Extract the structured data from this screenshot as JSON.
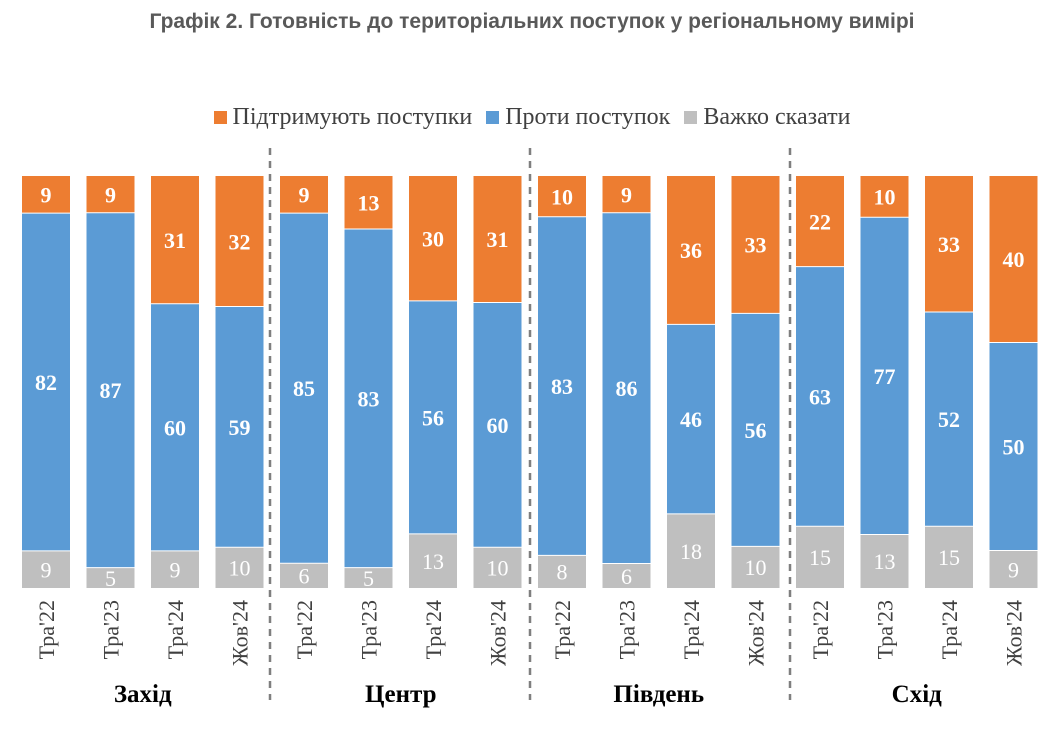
{
  "colors": {
    "support": "#ED7D31",
    "against": "#5B9BD5",
    "unsure": "#BFBFBF"
  },
  "chart_data": {
    "type": "bar",
    "stacked": true,
    "title": "Графік 2. Готовність до територіальних поступок у регіональному вимірі",
    "legend": [
      "Підтримують поступки",
      "Проти поступок",
      "Важко сказати"
    ],
    "legend_position": "top",
    "groups": [
      {
        "region": "Захід",
        "bars": [
          {
            "label": "Тра'22",
            "support": 9,
            "against": 82,
            "unsure": 9
          },
          {
            "label": "Тра'23",
            "support": 9,
            "against": 87,
            "unsure": 5
          },
          {
            "label": "Тра'24",
            "support": 31,
            "against": 60,
            "unsure": 9
          },
          {
            "label": "Жов'24",
            "support": 32,
            "against": 59,
            "unsure": 10
          }
        ]
      },
      {
        "region": "Центр",
        "bars": [
          {
            "label": "Тра'22",
            "support": 9,
            "against": 85,
            "unsure": 6
          },
          {
            "label": "Тра'23",
            "support": 13,
            "against": 83,
            "unsure": 5
          },
          {
            "label": "Тра'24",
            "support": 30,
            "against": 56,
            "unsure": 13
          },
          {
            "label": "Жов'24",
            "support": 31,
            "against": 60,
            "unsure": 10
          }
        ]
      },
      {
        "region": "Південь",
        "bars": [
          {
            "label": "Тра'22",
            "support": 10,
            "against": 83,
            "unsure": 8
          },
          {
            "label": "Тра'23",
            "support": 9,
            "against": 86,
            "unsure": 6
          },
          {
            "label": "Тра'24",
            "support": 36,
            "against": 46,
            "unsure": 18
          },
          {
            "label": "Жов'24",
            "support": 33,
            "against": 56,
            "unsure": 10
          }
        ]
      },
      {
        "region": "Схід",
        "bars": [
          {
            "label": "Тра'22",
            "support": 22,
            "against": 63,
            "unsure": 15
          },
          {
            "label": "Тра'23",
            "support": 10,
            "against": 77,
            "unsure": 13
          },
          {
            "label": "Тра'24",
            "support": 33,
            "against": 52,
            "unsure": 15
          },
          {
            "label": "Жов'24",
            "support": 40,
            "against": 50,
            "unsure": 9
          }
        ]
      }
    ]
  }
}
